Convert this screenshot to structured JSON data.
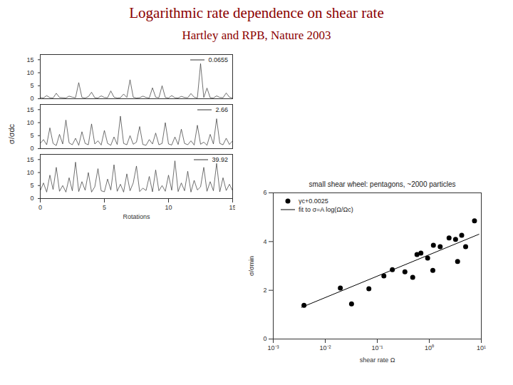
{
  "header": {
    "title": "Logarithmic rate dependence on shear rate",
    "subtitle": "Hartley and RPB, Nature 2003"
  },
  "chart_data": [
    {
      "type": "panels",
      "x_label": "Rotations",
      "y_label": "σ/σdc",
      "xlim": [
        0,
        15
      ],
      "xticks": [
        0,
        5,
        10,
        15
      ],
      "ylim": [
        0,
        17
      ],
      "yticks": [
        0,
        5,
        10,
        15
      ],
      "legend": "top-right",
      "x": [
        0,
        0.25,
        0.5,
        0.75,
        1,
        1.25,
        1.5,
        1.75,
        2,
        2.25,
        2.5,
        2.75,
        3,
        3.25,
        3.5,
        3.75,
        4,
        4.25,
        4.5,
        4.75,
        5,
        5.25,
        5.5,
        5.75,
        6,
        6.25,
        6.5,
        6.75,
        7,
        7.25,
        7.5,
        7.75,
        8,
        8.25,
        8.5,
        8.75,
        9,
        9.25,
        9.5,
        9.75,
        10,
        10.25,
        10.5,
        10.75,
        11,
        11.25,
        11.5,
        11.75,
        12,
        12.25,
        12.5,
        12.75,
        13,
        13.25,
        13.5,
        13.75,
        14,
        14.25,
        14.5,
        14.75,
        15
      ],
      "series": [
        {
          "name": "0.0655",
          "color": "#333333",
          "line_style": "solid",
          "values": [
            0.5,
            0.3,
            1.2,
            0.4,
            0.3,
            2.1,
            0.5,
            0.4,
            0.3,
            1.0,
            0.6,
            0.4,
            6.2,
            0.5,
            0.3,
            0.8,
            2.5,
            0.4,
            0.3,
            1.1,
            0.5,
            0.4,
            3.0,
            0.6,
            0.3,
            0.4,
            1.8,
            0.5,
            7.3,
            0.6,
            0.3,
            0.4,
            1.0,
            0.5,
            0.3,
            4.2,
            0.6,
            0.4,
            5.0,
            0.5,
            0.3,
            1.2,
            0.4,
            0.3,
            0.9,
            0.5,
            0.4,
            2.0,
            0.6,
            0.3,
            13.5,
            0.5,
            4.1,
            0.4,
            0.3,
            1.1,
            0.5,
            0.4,
            2.2,
            0.6,
            0.3
          ]
        },
        {
          "name": "2.66",
          "color": "#333333",
          "line_style": "solid",
          "values": [
            2.0,
            3.5,
            1.5,
            8.0,
            2.0,
            1.2,
            5.5,
            1.8,
            11.0,
            2.2,
            1.5,
            4.0,
            1.3,
            6.5,
            2.0,
            1.5,
            9.5,
            1.8,
            3.0,
            1.4,
            7.0,
            2.0,
            1.3,
            4.5,
            1.6,
            12.5,
            2.0,
            1.5,
            5.0,
            1.7,
            2.5,
            8.5,
            1.6,
            1.3,
            3.5,
            1.8,
            6.0,
            1.5,
            2.0,
            10.0,
            1.8,
            1.4,
            4.5,
            1.6,
            7.5,
            2.0,
            1.5,
            3.0,
            1.4,
            9.0,
            1.7,
            2.5,
            1.3,
            5.5,
            1.8,
            11.5,
            2.0,
            1.5,
            4.0,
            1.6,
            3.0
          ]
        },
        {
          "name": "39.92",
          "color": "#333333",
          "line_style": "solid",
          "values": [
            3.0,
            6.0,
            2.5,
            9.0,
            3.5,
            12.0,
            2.8,
            5.0,
            2.5,
            8.0,
            3.0,
            14.0,
            2.7,
            6.5,
            3.2,
            10.0,
            2.5,
            4.5,
            11.5,
            3.0,
            2.6,
            7.5,
            3.3,
            13.0,
            2.8,
            5.5,
            2.5,
            9.5,
            3.0,
            6.0,
            12.5,
            2.7,
            4.0,
            3.1,
            8.5,
            2.6,
            11.0,
            3.0,
            5.0,
            2.8,
            9.0,
            3.2,
            14.5,
            2.7,
            6.0,
            3.0,
            10.5,
            2.5,
            7.0,
            3.3,
            4.5,
            12.0,
            2.8,
            6.5,
            3.0,
            13.5,
            2.6,
            8.0,
            3.1,
            5.5,
            3.0
          ]
        }
      ]
    },
    {
      "type": "scatter",
      "title": "small shear wheel: pentagons, ~2000 particles",
      "x_label": "shear rate Ω",
      "y_label": "σ/σmin",
      "log": "x",
      "xlim": [
        0.001,
        10
      ],
      "xticks": [
        {
          "value": 0.001,
          "label": "10⁻³"
        },
        {
          "value": 0.01,
          "label": "10⁻²"
        },
        {
          "value": 0.1,
          "label": "10⁻¹"
        },
        {
          "value": 1,
          "label": "10⁰"
        },
        {
          "value": 10,
          "label": "10¹"
        }
      ],
      "ylim": [
        0,
        6
      ],
      "yticks": [
        0,
        2,
        4,
        6
      ],
      "legend": "top-left",
      "series": [
        {
          "name": "γc+0.0025",
          "type": "scatter",
          "marker": "circle",
          "color": "#000000",
          "x": [
            0.0039,
            0.0195,
            0.032,
            0.069,
            0.134,
            0.195,
            0.34,
            0.48,
            0.58,
            0.69,
            0.93,
            1.2,
            1.17,
            1.62,
            2.4,
            3.2,
            3.5,
            4.2,
            5.0,
            7.4
          ],
          "values": [
            1.38,
            2.09,
            1.44,
            2.06,
            2.59,
            2.85,
            2.76,
            2.53,
            3.47,
            3.53,
            3.32,
            3.85,
            2.82,
            3.79,
            4.15,
            4.09,
            3.18,
            4.26,
            3.79,
            4.85
          ]
        },
        {
          "name": "fit to σ=A log(Ω/Ωc)",
          "type": "line",
          "line_style": "solid",
          "color": "#000000",
          "x": [
            0.0035,
            9
          ],
          "values": [
            1.3,
            4.3
          ]
        }
      ]
    }
  ]
}
